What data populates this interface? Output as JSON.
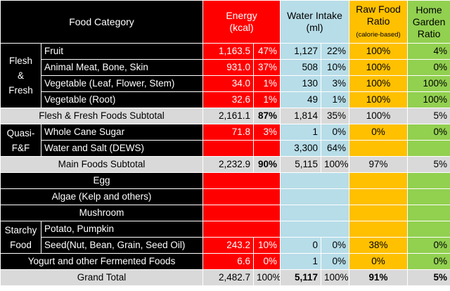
{
  "header": {
    "category": "Food Category",
    "energy": [
      "Energy",
      "(kcal)"
    ],
    "water": [
      "Water Intake",
      "(ml)"
    ],
    "raw": [
      "Raw Food",
      "Ratio",
      "(calorie-based)"
    ],
    "home": [
      "Home",
      "Garden",
      "Ratio"
    ]
  },
  "groups": {
    "flesh": [
      "Flesh",
      "&",
      "Fresh"
    ],
    "quasi": [
      "Quasi-",
      "F&F"
    ],
    "starchy": [
      "Starchy",
      "Food"
    ]
  },
  "rows": {
    "fruit": {
      "name": "Fruit",
      "kcal": "1,163.5",
      "kcal_pct": "47%",
      "ml": "1,127",
      "ml_pct": "22%",
      "raw": "100%",
      "home": "4%"
    },
    "meat": {
      "name": "Animal Meat, Bone, Skin",
      "kcal": "931.0",
      "kcal_pct": "37%",
      "ml": "508",
      "ml_pct": "10%",
      "raw": "100%",
      "home": "0%"
    },
    "vegleaf": {
      "name": "Vegetable (Leaf, Flower, Stem)",
      "kcal": "34.0",
      "kcal_pct": "1%",
      "ml": "130",
      "ml_pct": "3%",
      "raw": "100%",
      "home": "100%"
    },
    "vegroot": {
      "name": "Vegetable (Root)",
      "kcal": "32.6",
      "kcal_pct": "1%",
      "ml": "49",
      "ml_pct": "1%",
      "raw": "100%",
      "home": "100%"
    },
    "sub1": {
      "name": "Flesh & Fresh Foods Subtotal",
      "kcal": "2,161.1",
      "kcal_pct": "87%",
      "ml": "1,814",
      "ml_pct": "35%",
      "raw": "100%",
      "home": "5%"
    },
    "sugar": {
      "name": "Whole Cane Sugar",
      "kcal": "71.8",
      "kcal_pct": "3%",
      "ml": "1",
      "ml_pct": "0%",
      "raw": "0%",
      "home": "0%"
    },
    "water": {
      "name": "Water and Salt (DEWS)",
      "ml": "3,300",
      "ml_pct": "64%"
    },
    "sub2": {
      "name": "Main Foods Subtotal",
      "kcal": "2,232.9",
      "kcal_pct": "90%",
      "ml": "5,115",
      "ml_pct": "100%",
      "raw": "97%",
      "home": "5%"
    },
    "egg": {
      "name": "Egg"
    },
    "algae": {
      "name": "Algae (Kelp and others)"
    },
    "mushroom": {
      "name": "Mushroom"
    },
    "potato": {
      "name": "Potato, Pumpkin"
    },
    "seed": {
      "name": "Seed(Nut, Bean, Grain, Seed Oil)",
      "kcal": "243.2",
      "kcal_pct": "10%",
      "ml": "0",
      "ml_pct": "0%",
      "raw": "38%",
      "home": "0%"
    },
    "yogurt": {
      "name": "Yogurt and other Fermented Foods",
      "kcal": "6.6",
      "kcal_pct": "0%",
      "ml": "1",
      "ml_pct": "0%",
      "raw": "0%",
      "home": "0%"
    },
    "total": {
      "name": "Grand Total",
      "kcal": "2,482.7",
      "kcal_pct": "100%",
      "ml": "5,117",
      "ml_pct": "100%",
      "raw": "91%",
      "home": "5%"
    }
  },
  "colors": {
    "energy": "#ff0000",
    "water": "#b7dde8",
    "raw": "#ffc000",
    "home": "#92d050",
    "category": "#000000",
    "subtotal": "#d9d9d9"
  }
}
